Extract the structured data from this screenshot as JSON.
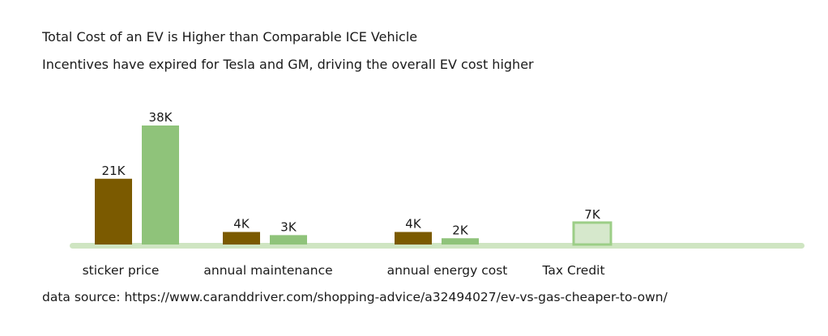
{
  "title": "Total Cost of an EV is Higher than Comparable ICE Vehicle",
  "subtitle": "Incentives have expired for Tesla and GM, driving the overall EV cost higher",
  "source": "data source: https://www.caranddriver.com/shopping-advice/a32494027/ev-vs-gas-cheaper-to-own/",
  "colors": {
    "series_dark": "#7b5a00",
    "series_light": "#8fc37a",
    "tax_credit_fill": "#d6e8cc",
    "tax_credit_stroke": "#9cce87",
    "baseline": "#cfe5c2"
  },
  "chart_data": {
    "type": "bar",
    "categories": [
      "sticker price",
      "annual maintenance",
      "annual energy cost",
      "Tax Credit"
    ],
    "series": [
      {
        "values": [
          21,
          4,
          4,
          null
        ],
        "labels": [
          "21K",
          "4K",
          "4K",
          ""
        ]
      },
      {
        "values": [
          38,
          3,
          2,
          7
        ],
        "labels": [
          "38K",
          "3K",
          "2K",
          "7K"
        ]
      }
    ],
    "units": "K",
    "ylim": [
      0,
      40
    ],
    "legend": "none",
    "grid": false
  }
}
